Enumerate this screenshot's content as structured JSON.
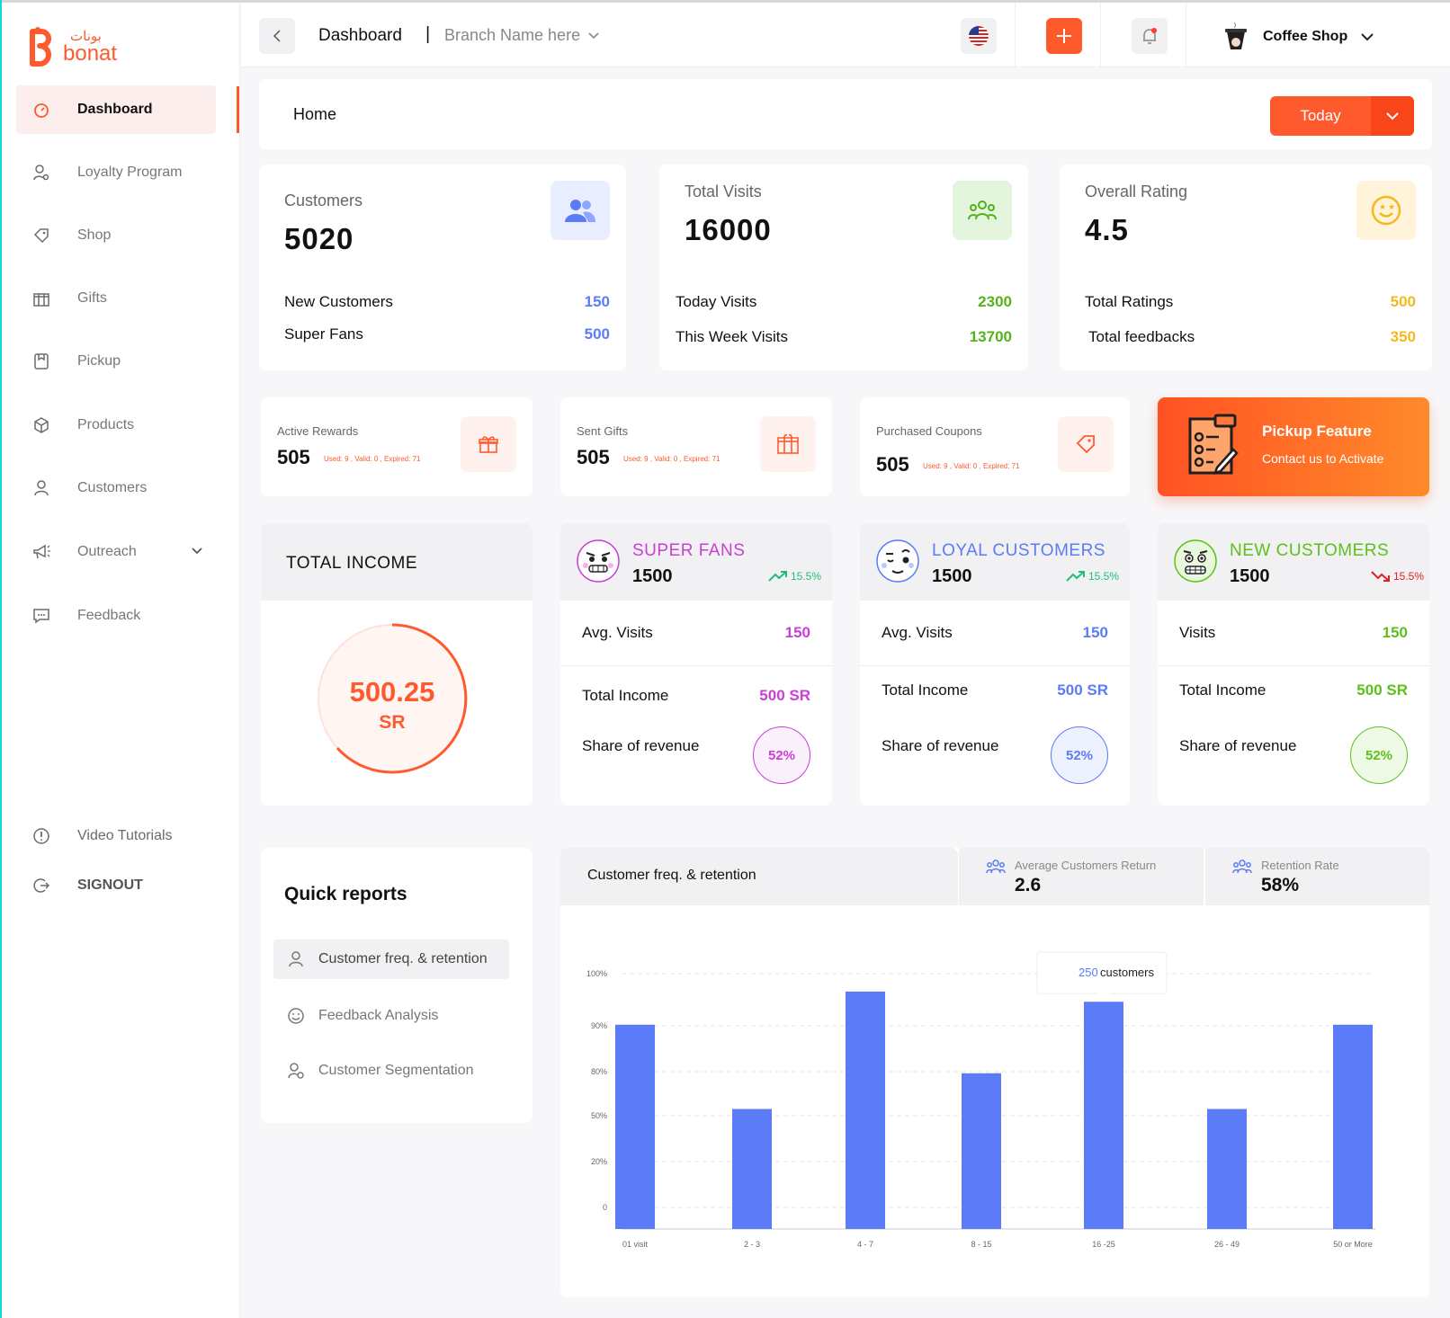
{
  "brand": {
    "name_en": "bonat",
    "name_ar": "بونات"
  },
  "sidebar": {
    "items": [
      {
        "label": "Dashboard"
      },
      {
        "label": "Loyalty Program"
      },
      {
        "label": "Shop"
      },
      {
        "label": "Gifts"
      },
      {
        "label": "Pickup"
      },
      {
        "label": "Products"
      },
      {
        "label": "Customers"
      },
      {
        "label": "Outreach"
      },
      {
        "label": "Feedback"
      }
    ],
    "bottom": [
      {
        "label": "Video Tutorials"
      },
      {
        "label": "SIGNOUT"
      }
    ]
  },
  "header": {
    "breadcrumb": "Dashboard",
    "separator": "|",
    "branch": "Branch Name here",
    "account": "Coffee Shop"
  },
  "homebar": {
    "title": "Home",
    "period": "Today"
  },
  "stats": [
    {
      "title": "Customers",
      "value": "5020",
      "rows": [
        {
          "label": "New Customers",
          "value": "150"
        },
        {
          "label": "Super Fans",
          "value": "500"
        }
      ]
    },
    {
      "title": "Total Visits",
      "value": "16000",
      "rows": [
        {
          "label": "Today Visits",
          "value": "2300"
        },
        {
          "label": "This Week Visits",
          "value": "13700"
        }
      ]
    },
    {
      "title": "Overall Rating",
      "value": "4.5",
      "rows": [
        {
          "label": "Total Ratings",
          "value": "500"
        },
        {
          "label": "Total feedbacks",
          "value": "350"
        }
      ]
    }
  ],
  "small_cards": [
    {
      "label": "Active Rewards",
      "value": "505",
      "sub": "Used: 9 , Valid: 0 , Expired: 71"
    },
    {
      "label": "Sent Gifts",
      "value": "505",
      "sub": "Used: 9 , Valid: 0 , Expired: 71"
    },
    {
      "label": "Purchased Coupons",
      "value": "505",
      "sub": "Used: 9 , Valid: 0 , Expired: 71"
    }
  ],
  "pickup": {
    "title": "Pickup Feature",
    "subtitle": "Contact us to Activate"
  },
  "income": {
    "title": "TOTAL INCOME",
    "value": "500.25",
    "unit": "SR"
  },
  "segments": [
    {
      "name": "SUPER FANS",
      "count": "1500",
      "trend": "15.5%",
      "trend_dir": "up",
      "color": "#c93fd6",
      "rows": [
        {
          "label": "Avg. Visits",
          "value": "150"
        },
        {
          "label": "Total Income",
          "value": "500 SR"
        },
        {
          "label": "Share of revenue",
          "value": "52%"
        }
      ]
    },
    {
      "name": "LOYAL CUSTOMERS",
      "count": "1500",
      "trend": "15.5%",
      "trend_dir": "up",
      "color": "#5b7cf6",
      "rows": [
        {
          "label": "Avg. Visits",
          "value": "150"
        },
        {
          "label": "Total Income",
          "value": "500 SR"
        },
        {
          "label": "Share of revenue",
          "value": "52%"
        }
      ]
    },
    {
      "name": "NEW CUSTOMERS",
      "count": "1500",
      "trend": "15.5%",
      "trend_dir": "down",
      "color": "#5cc11b",
      "rows": [
        {
          "label": "Visits",
          "value": "150"
        },
        {
          "label": "Total Income",
          "value": "500 SR"
        },
        {
          "label": "Share of revenue",
          "value": "52%"
        }
      ]
    }
  ],
  "quick_reports": {
    "title": "Quick reports",
    "items": [
      {
        "label": "Customer freq. & retention"
      },
      {
        "label": "Feedback Analysis"
      },
      {
        "label": "Customer Segmentation"
      }
    ]
  },
  "chart_panel": {
    "title": "Customer freq. & retention",
    "stats": [
      {
        "label": "Average Customers Return",
        "value": "2.6"
      },
      {
        "label": "Retention Rate",
        "value": "58%"
      }
    ],
    "tooltip": {
      "value": "250",
      "label": "customers"
    }
  },
  "colors": {
    "accent": "#ff5a2e",
    "bar": "#5b7cf6",
    "up": "#1fbf7a",
    "down": "#e02020"
  },
  "chart_data": {
    "type": "bar",
    "categories": [
      "01 visit",
      "2 - 3",
      "4 - 7",
      "8 - 15",
      "16 -25",
      "26 - 49",
      "50 or More"
    ],
    "y_tick_labels": [
      "0",
      "20%",
      "50%",
      "80%",
      "90%",
      "100%"
    ],
    "values": [
      80,
      47,
      93,
      61,
      89,
      47,
      80
    ],
    "ylim": [
      0,
      100
    ],
    "grid": true,
    "highlight_index": 4
  }
}
